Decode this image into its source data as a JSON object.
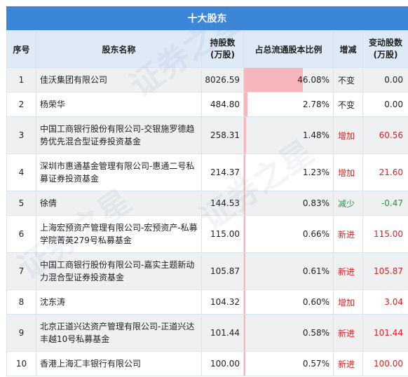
{
  "title": "十大股东",
  "headers": {
    "no": "序号",
    "name": "股东名称",
    "hold": "持股数\n(万股)",
    "pct": "占总流通股本比例",
    "chg": "增减",
    "amt": "变动股数\n(万股)"
  },
  "rows": [
    {
      "no": "1",
      "name": "佳沃集团有限公司",
      "hold": "8026.59",
      "pct": "46.08%",
      "pct_value": 46.08,
      "chg": "不变",
      "chg_type": "flat",
      "amt": "0.00"
    },
    {
      "no": "2",
      "name": "杨荣华",
      "hold": "484.80",
      "pct": "2.78%",
      "pct_value": 2.78,
      "chg": "不变",
      "chg_type": "flat",
      "amt": "0.00"
    },
    {
      "no": "3",
      "name": "中国工商银行股份有限公司-交银施罗德趋势优先混合型证券投资基金",
      "hold": "258.31",
      "pct": "1.48%",
      "pct_value": 1.48,
      "chg": "增加",
      "chg_type": "up",
      "amt": "60.56"
    },
    {
      "no": "4",
      "name": "深圳市惠通基金管理有限公司-惠通二号私募证券投资基金",
      "hold": "214.37",
      "pct": "1.23%",
      "pct_value": 1.23,
      "chg": "增加",
      "chg_type": "up",
      "amt": "21.60"
    },
    {
      "no": "5",
      "name": "徐倩",
      "hold": "144.53",
      "pct": "0.83%",
      "pct_value": 0.83,
      "chg": "减少",
      "chg_type": "down",
      "amt": "-0.47"
    },
    {
      "no": "6",
      "name": "上海宏预资产管理有限公司-宏预资产-私募学院菁英279号私募基金",
      "hold": "115.00",
      "pct": "0.66%",
      "pct_value": 0.66,
      "chg": "新进",
      "chg_type": "up",
      "amt": "115.00"
    },
    {
      "no": "7",
      "name": "中国工商银行股份有限公司-嘉实主题新动力混合型证券投资基金",
      "hold": "105.87",
      "pct": "0.61%",
      "pct_value": 0.61,
      "chg": "新进",
      "chg_type": "up",
      "amt": "105.87"
    },
    {
      "no": "8",
      "name": "沈东涛",
      "hold": "104.32",
      "pct": "0.60%",
      "pct_value": 0.6,
      "chg": "增加",
      "chg_type": "up",
      "amt": "3.04"
    },
    {
      "no": "9",
      "name": "北京正道兴达资产管理有限公司-正道兴达丰越10号私募基金",
      "hold": "101.44",
      "pct": "0.58%",
      "pct_value": 0.58,
      "chg": "新进",
      "chg_type": "up",
      "amt": "101.44"
    },
    {
      "no": "10",
      "name": "香港上海汇丰银行有限公司",
      "hold": "100.00",
      "pct": "0.57%",
      "pct_value": 0.57,
      "chg": "新进",
      "chg_type": "up",
      "amt": "100.00"
    }
  ],
  "colors": {
    "title_bg": "#3b86d8",
    "header_bg": "#dfeaf7",
    "bar": "#f6b6bc",
    "up": "#e02020",
    "down": "#1e9c3a"
  },
  "watermark": "证券之星"
}
